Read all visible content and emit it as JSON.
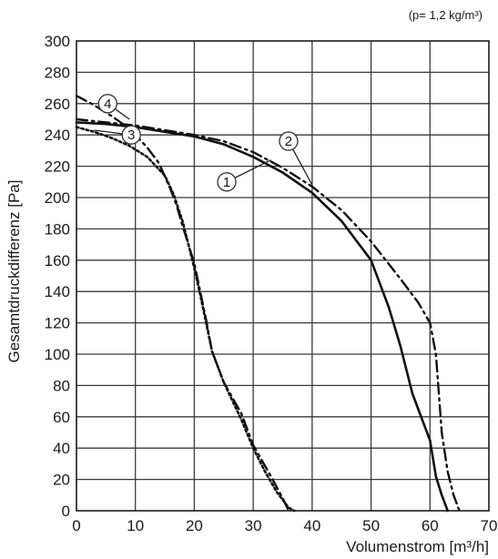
{
  "chart_data": {
    "type": "line",
    "annotation": "(p= 1,2 kg/m³)",
    "xlabel": "Volumenstrom [m³/h]",
    "ylabel": "Gesamtdruckdifferenz [Pa]",
    "xlim": [
      0,
      70
    ],
    "ylim": [
      0,
      300
    ],
    "x_ticks": [
      "0",
      "10",
      "20",
      "30",
      "40",
      "50",
      "60",
      "70"
    ],
    "y_ticks": [
      "0",
      "20",
      "40",
      "60",
      "80",
      "100",
      "120",
      "140",
      "160",
      "180",
      "200",
      "220",
      "240",
      "260",
      "280",
      "300"
    ],
    "grid": true,
    "series": [
      {
        "name": "1",
        "style": "solid",
        "x": [
          0,
          5,
          10,
          15,
          20,
          25,
          30,
          35,
          40,
          45,
          50,
          53,
          55,
          57,
          59,
          60,
          61,
          62,
          63
        ],
        "y": [
          248,
          247,
          245,
          242,
          239,
          234,
          226,
          216,
          203,
          185,
          160,
          130,
          105,
          75,
          55,
          45,
          22,
          10,
          0
        ]
      },
      {
        "name": "2",
        "style": "dash-dot",
        "x": [
          0,
          5,
          10,
          15,
          20,
          25,
          30,
          35,
          40,
          45,
          50,
          55,
          58,
          60,
          61,
          61.5,
          62,
          63,
          64,
          65
        ],
        "y": [
          250,
          248,
          246,
          243,
          240,
          236,
          229,
          219,
          207,
          192,
          172,
          148,
          133,
          120,
          100,
          75,
          50,
          25,
          10,
          0
        ]
      },
      {
        "name": "3",
        "style": "dotted",
        "x": [
          0,
          3,
          6,
          9,
          12,
          15,
          16.5,
          18,
          19,
          20,
          21,
          22,
          23,
          25,
          28,
          30,
          32,
          34,
          36,
          37
        ],
        "y": [
          245,
          242,
          238,
          233,
          226,
          214,
          202,
          185,
          170,
          155,
          138,
          120,
          102,
          82,
          58,
          40,
          25,
          12,
          2,
          0
        ]
      },
      {
        "name": "4",
        "style": "dash-dot",
        "x": [
          0,
          3,
          6,
          9,
          12,
          14,
          16,
          17,
          18,
          19,
          20,
          21,
          22,
          23,
          25,
          28,
          30,
          33,
          35,
          36
        ],
        "y": [
          265,
          259,
          252,
          244,
          232,
          222,
          205,
          195,
          182,
          170,
          158,
          140,
          122,
          102,
          82,
          62,
          42,
          22,
          8,
          0
        ]
      }
    ],
    "callouts": [
      {
        "label": "1",
        "at": [
          25.5,
          210
        ],
        "points_to": [
          33,
          224
        ]
      },
      {
        "label": "2",
        "at": [
          36,
          236
        ],
        "points_to": [
          40,
          208
        ]
      },
      {
        "label": "3",
        "at": [
          9.3,
          240
        ],
        "points_to": [
          3,
          243
        ]
      },
      {
        "label": "4",
        "at": [
          5.3,
          260
        ],
        "points_to": [
          9,
          250
        ]
      }
    ]
  }
}
